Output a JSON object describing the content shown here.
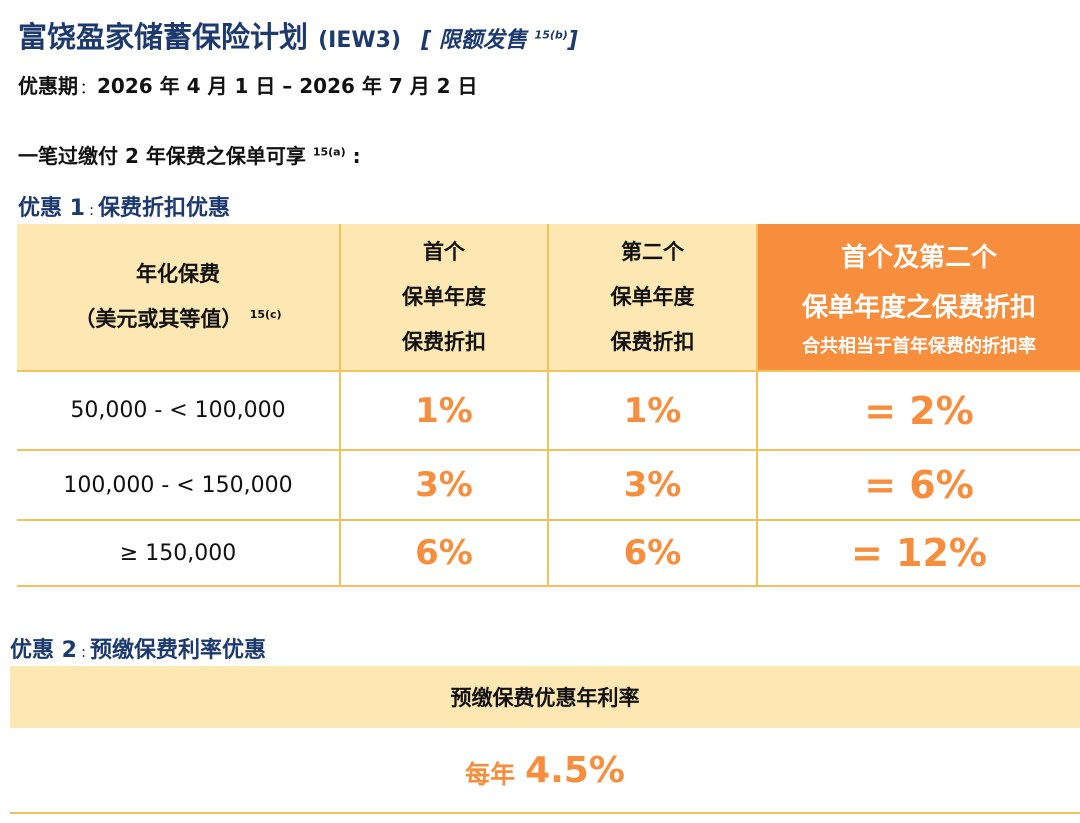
{
  "header": {
    "title": "富饶盈家储蓄保险计划",
    "code": "(IEW3)",
    "tag_text": "限额发售",
    "tag_ref": "15(b)"
  },
  "period": {
    "label": "优惠期",
    "value": "2026 年 4 月 1 日 – 2026 年 7 月 2 日"
  },
  "intro": {
    "text": "一笔过缴付 2 年保费之保单可享",
    "ref": "15(a)"
  },
  "offer1": {
    "title_prefix": "优惠 1",
    "title": "保费折扣优惠",
    "headers": {
      "col1_line1": "年化保费",
      "col1_line2": "（美元或其等值）",
      "col1_ref": "15(c)",
      "col2": [
        "首个",
        "保单年度",
        "保费折扣"
      ],
      "col3": [
        "第二个",
        "保单年度",
        "保费折扣"
      ],
      "col4": [
        "首个及第二个",
        "保单年度之保费折扣",
        "合共相当于首年保费的折扣率"
      ]
    },
    "rows": [
      {
        "range": "50,000 - < 100,000",
        "first": "1%",
        "second": "1%",
        "total": "= 2%"
      },
      {
        "range": "100,000 - < 150,000",
        "first": "3%",
        "second": "3%",
        "total": "= 6%"
      },
      {
        "range": "≥ 150,000",
        "first": "6%",
        "second": "6%",
        "total": "= 12%"
      }
    ]
  },
  "offer2": {
    "title_prefix": "优惠 2",
    "title": "预缴保费利率优惠",
    "header": "预缴保费优惠年利率",
    "value_prefix": "每年",
    "value": "4.5%"
  },
  "colors": {
    "navy": "#1d3a6e",
    "orange": "#f68e3d",
    "light_yellow": "#fde7b3",
    "border_yellow": "#f4c25b"
  }
}
